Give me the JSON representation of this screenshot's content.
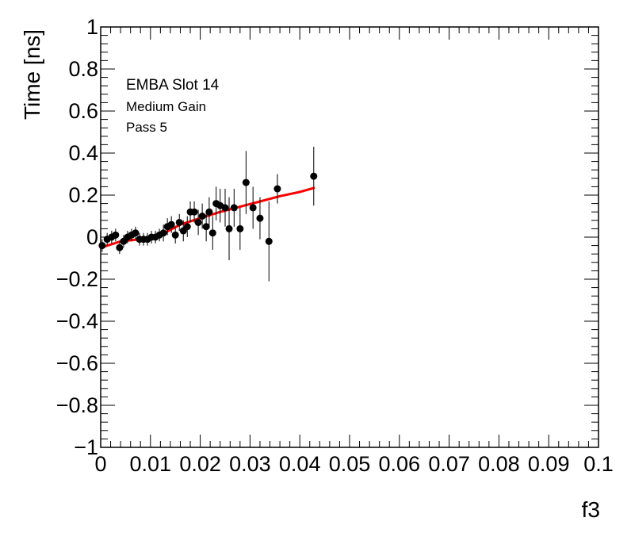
{
  "chart_data": {
    "type": "scatter",
    "xlabel": "f3",
    "ylabel": "Time [ns]",
    "xlim": [
      0,
      0.1
    ],
    "ylim": [
      -1,
      1
    ],
    "x_ticks": [
      {
        "value": 0,
        "label": "0"
      },
      {
        "value": 0.01,
        "label": "0.01"
      },
      {
        "value": 0.02,
        "label": "0.02"
      },
      {
        "value": 0.03,
        "label": "0.03"
      },
      {
        "value": 0.04,
        "label": "0.04"
      },
      {
        "value": 0.05,
        "label": "0.05"
      },
      {
        "value": 0.06,
        "label": "0.06"
      },
      {
        "value": 0.07,
        "label": "0.07"
      },
      {
        "value": 0.08,
        "label": "0.08"
      },
      {
        "value": 0.09,
        "label": "0.09"
      },
      {
        "value": 0.1,
        "label": "0.1"
      }
    ],
    "y_ticks": [
      {
        "value": 1,
        "label": "1"
      },
      {
        "value": 0.8,
        "label": "0.8"
      },
      {
        "value": 0.6,
        "label": "0.6"
      },
      {
        "value": 0.4,
        "label": "0.4"
      },
      {
        "value": 0.2,
        "label": "0.2"
      },
      {
        "value": 0,
        "label": "0"
      },
      {
        "value": -0.2,
        "label": "−0.2"
      },
      {
        "value": -0.4,
        "label": "−0.4"
      },
      {
        "value": -0.6,
        "label": "−0.6"
      },
      {
        "value": -0.8,
        "label": "−0.8"
      },
      {
        "value": -1,
        "label": "−1"
      }
    ],
    "annotations": [
      "EMBA Slot 14",
      "Medium Gain",
      "Pass 5"
    ],
    "grid": false,
    "legend": "none",
    "series": [
      {
        "kind": "points-with-error-bars",
        "color": "#000000",
        "points": [
          {
            "x": 0.0003,
            "y": -0.04,
            "err": 0.03
          },
          {
            "x": 0.0013,
            "y": -0.01,
            "err": 0.03
          },
          {
            "x": 0.0022,
            "y": 0.0,
            "err": 0.03
          },
          {
            "x": 0.003,
            "y": 0.01,
            "err": 0.03
          },
          {
            "x": 0.0038,
            "y": -0.05,
            "err": 0.03
          },
          {
            "x": 0.0046,
            "y": -0.02,
            "err": 0.03
          },
          {
            "x": 0.0054,
            "y": 0.0,
            "err": 0.03
          },
          {
            "x": 0.0062,
            "y": 0.01,
            "err": 0.03
          },
          {
            "x": 0.007,
            "y": 0.02,
            "err": 0.03
          },
          {
            "x": 0.0078,
            "y": -0.01,
            "err": 0.03
          },
          {
            "x": 0.0086,
            "y": -0.01,
            "err": 0.03
          },
          {
            "x": 0.0094,
            "y": -0.01,
            "err": 0.03
          },
          {
            "x": 0.0102,
            "y": 0.0,
            "err": 0.03
          },
          {
            "x": 0.011,
            "y": 0.0,
            "err": 0.03
          },
          {
            "x": 0.0118,
            "y": 0.01,
            "err": 0.03
          },
          {
            "x": 0.0126,
            "y": 0.02,
            "err": 0.04
          },
          {
            "x": 0.0134,
            "y": 0.05,
            "err": 0.04
          },
          {
            "x": 0.0142,
            "y": 0.06,
            "err": 0.04
          },
          {
            "x": 0.015,
            "y": 0.01,
            "err": 0.04
          },
          {
            "x": 0.0158,
            "y": 0.07,
            "err": 0.04
          },
          {
            "x": 0.0166,
            "y": 0.03,
            "err": 0.05
          },
          {
            "x": 0.0174,
            "y": 0.05,
            "err": 0.05
          },
          {
            "x": 0.018,
            "y": 0.12,
            "err": 0.05
          },
          {
            "x": 0.0188,
            "y": 0.12,
            "err": 0.05
          },
          {
            "x": 0.0196,
            "y": 0.07,
            "err": 0.06
          },
          {
            "x": 0.0204,
            "y": 0.1,
            "err": 0.06
          },
          {
            "x": 0.0212,
            "y": 0.05,
            "err": 0.07
          },
          {
            "x": 0.0218,
            "y": 0.12,
            "err": 0.07
          },
          {
            "x": 0.0225,
            "y": 0.02,
            "err": 0.08
          },
          {
            "x": 0.0232,
            "y": 0.16,
            "err": 0.08
          },
          {
            "x": 0.024,
            "y": 0.15,
            "err": 0.08
          },
          {
            "x": 0.025,
            "y": 0.14,
            "err": 0.09
          },
          {
            "x": 0.0258,
            "y": 0.04,
            "err": 0.15
          },
          {
            "x": 0.0268,
            "y": 0.14,
            "err": 0.09
          },
          {
            "x": 0.028,
            "y": 0.04,
            "err": 0.1
          },
          {
            "x": 0.0292,
            "y": 0.26,
            "err": 0.15
          },
          {
            "x": 0.0306,
            "y": 0.14,
            "err": 0.1
          },
          {
            "x": 0.032,
            "y": 0.09,
            "err": 0.1
          },
          {
            "x": 0.0338,
            "y": -0.02,
            "err": 0.19
          },
          {
            "x": 0.0355,
            "y": 0.23,
            "err": 0.07
          },
          {
            "x": 0.0428,
            "y": 0.29,
            "err": 0.14
          }
        ]
      },
      {
        "kind": "fit-line",
        "color": "#ff0000",
        "x": [
          0.0,
          0.004,
          0.008,
          0.012,
          0.016,
          0.02,
          0.024,
          0.028,
          0.032,
          0.036,
          0.04,
          0.043
        ],
        "y": [
          -0.05,
          -0.02,
          -0.01,
          0.01,
          0.06,
          0.09,
          0.12,
          0.145,
          0.17,
          0.195,
          0.215,
          0.235
        ]
      }
    ]
  }
}
